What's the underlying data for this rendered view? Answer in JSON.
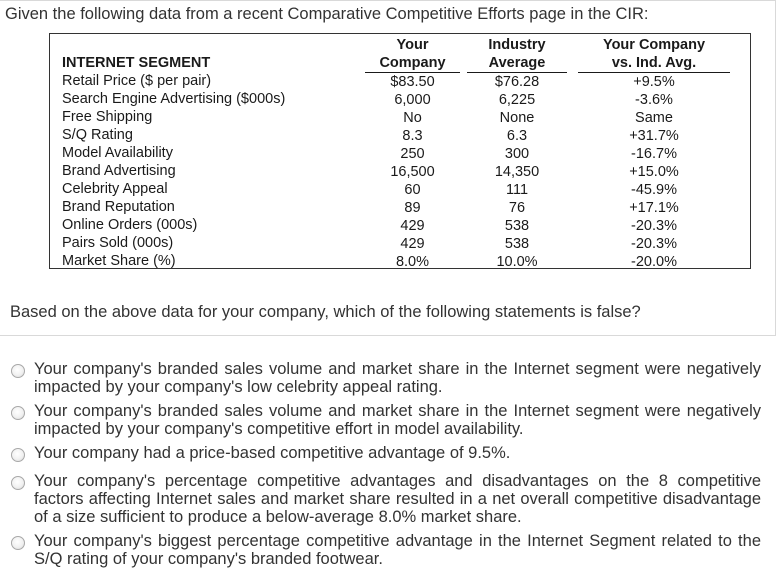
{
  "intro": "Given the following data from a recent Comparative Competitive Efforts page in the CIR:",
  "table": {
    "headers": {
      "segment": "INTERNET SEGMENT",
      "your_company": [
        "Your",
        "Company"
      ],
      "industry_average": [
        "Industry",
        "Average"
      ],
      "vs": [
        "Your Company",
        "vs. Ind. Avg."
      ]
    },
    "rows": [
      {
        "label": "Retail Price ($ per pair)",
        "you": "$83.50",
        "ind": "$76.28",
        "vs": "+9.5%"
      },
      {
        "label": "Search Engine Advertising ($000s)",
        "you": "6,000",
        "ind": "6,225",
        "vs": "-3.6%"
      },
      {
        "label": "Free Shipping",
        "you": "No",
        "ind": "None",
        "vs": "Same"
      },
      {
        "label": "S/Q Rating",
        "you": "8.3",
        "ind": "6.3",
        "vs": "+31.7%"
      },
      {
        "label": "Model Availability",
        "you": "250",
        "ind": "300",
        "vs": "-16.7%"
      },
      {
        "label": "Brand Advertising",
        "you": "16,500",
        "ind": "14,350",
        "vs": "+15.0%"
      },
      {
        "label": "Celebrity Appeal",
        "you": "60",
        "ind": "111",
        "vs": "-45.9%"
      },
      {
        "label": "Brand Reputation",
        "you": "89",
        "ind": "76",
        "vs": "+17.1%"
      },
      {
        "label": "Online Orders (000s)",
        "you": "429",
        "ind": "538",
        "vs": "-20.3%"
      },
      {
        "label": "Pairs Sold (000s)",
        "you": "429",
        "ind": "538",
        "vs": "-20.3%"
      },
      {
        "label": "Market Share (%)",
        "you": "8.0%",
        "ind": "10.0%",
        "vs": "-20.0%"
      }
    ]
  },
  "question": "Based on the above data for your company, which of the following statements is false?",
  "options": [
    {
      "text": "Your company's branded sales volume and market share in the Internet segment were negatively impacted by your company's low celebrity appeal rating."
    },
    {
      "text": "Your company's branded sales volume and market share in the Internet segment were negatively impacted by your company's competitive effort in model availability."
    },
    {
      "text": "Your company had a price-based competitive advantage of 9.5%."
    },
    {
      "text": "Your company's percentage competitive advantages and disadvantages on the 8 competitive factors affecting Internet sales and market share resulted in a net overall competitive disadvantage of a size sufficient to produce a below-average 8.0% market share."
    },
    {
      "text": "Your company's biggest percentage competitive advantage in the Internet Segment related to the S/Q rating of your company's branded footwear."
    }
  ]
}
